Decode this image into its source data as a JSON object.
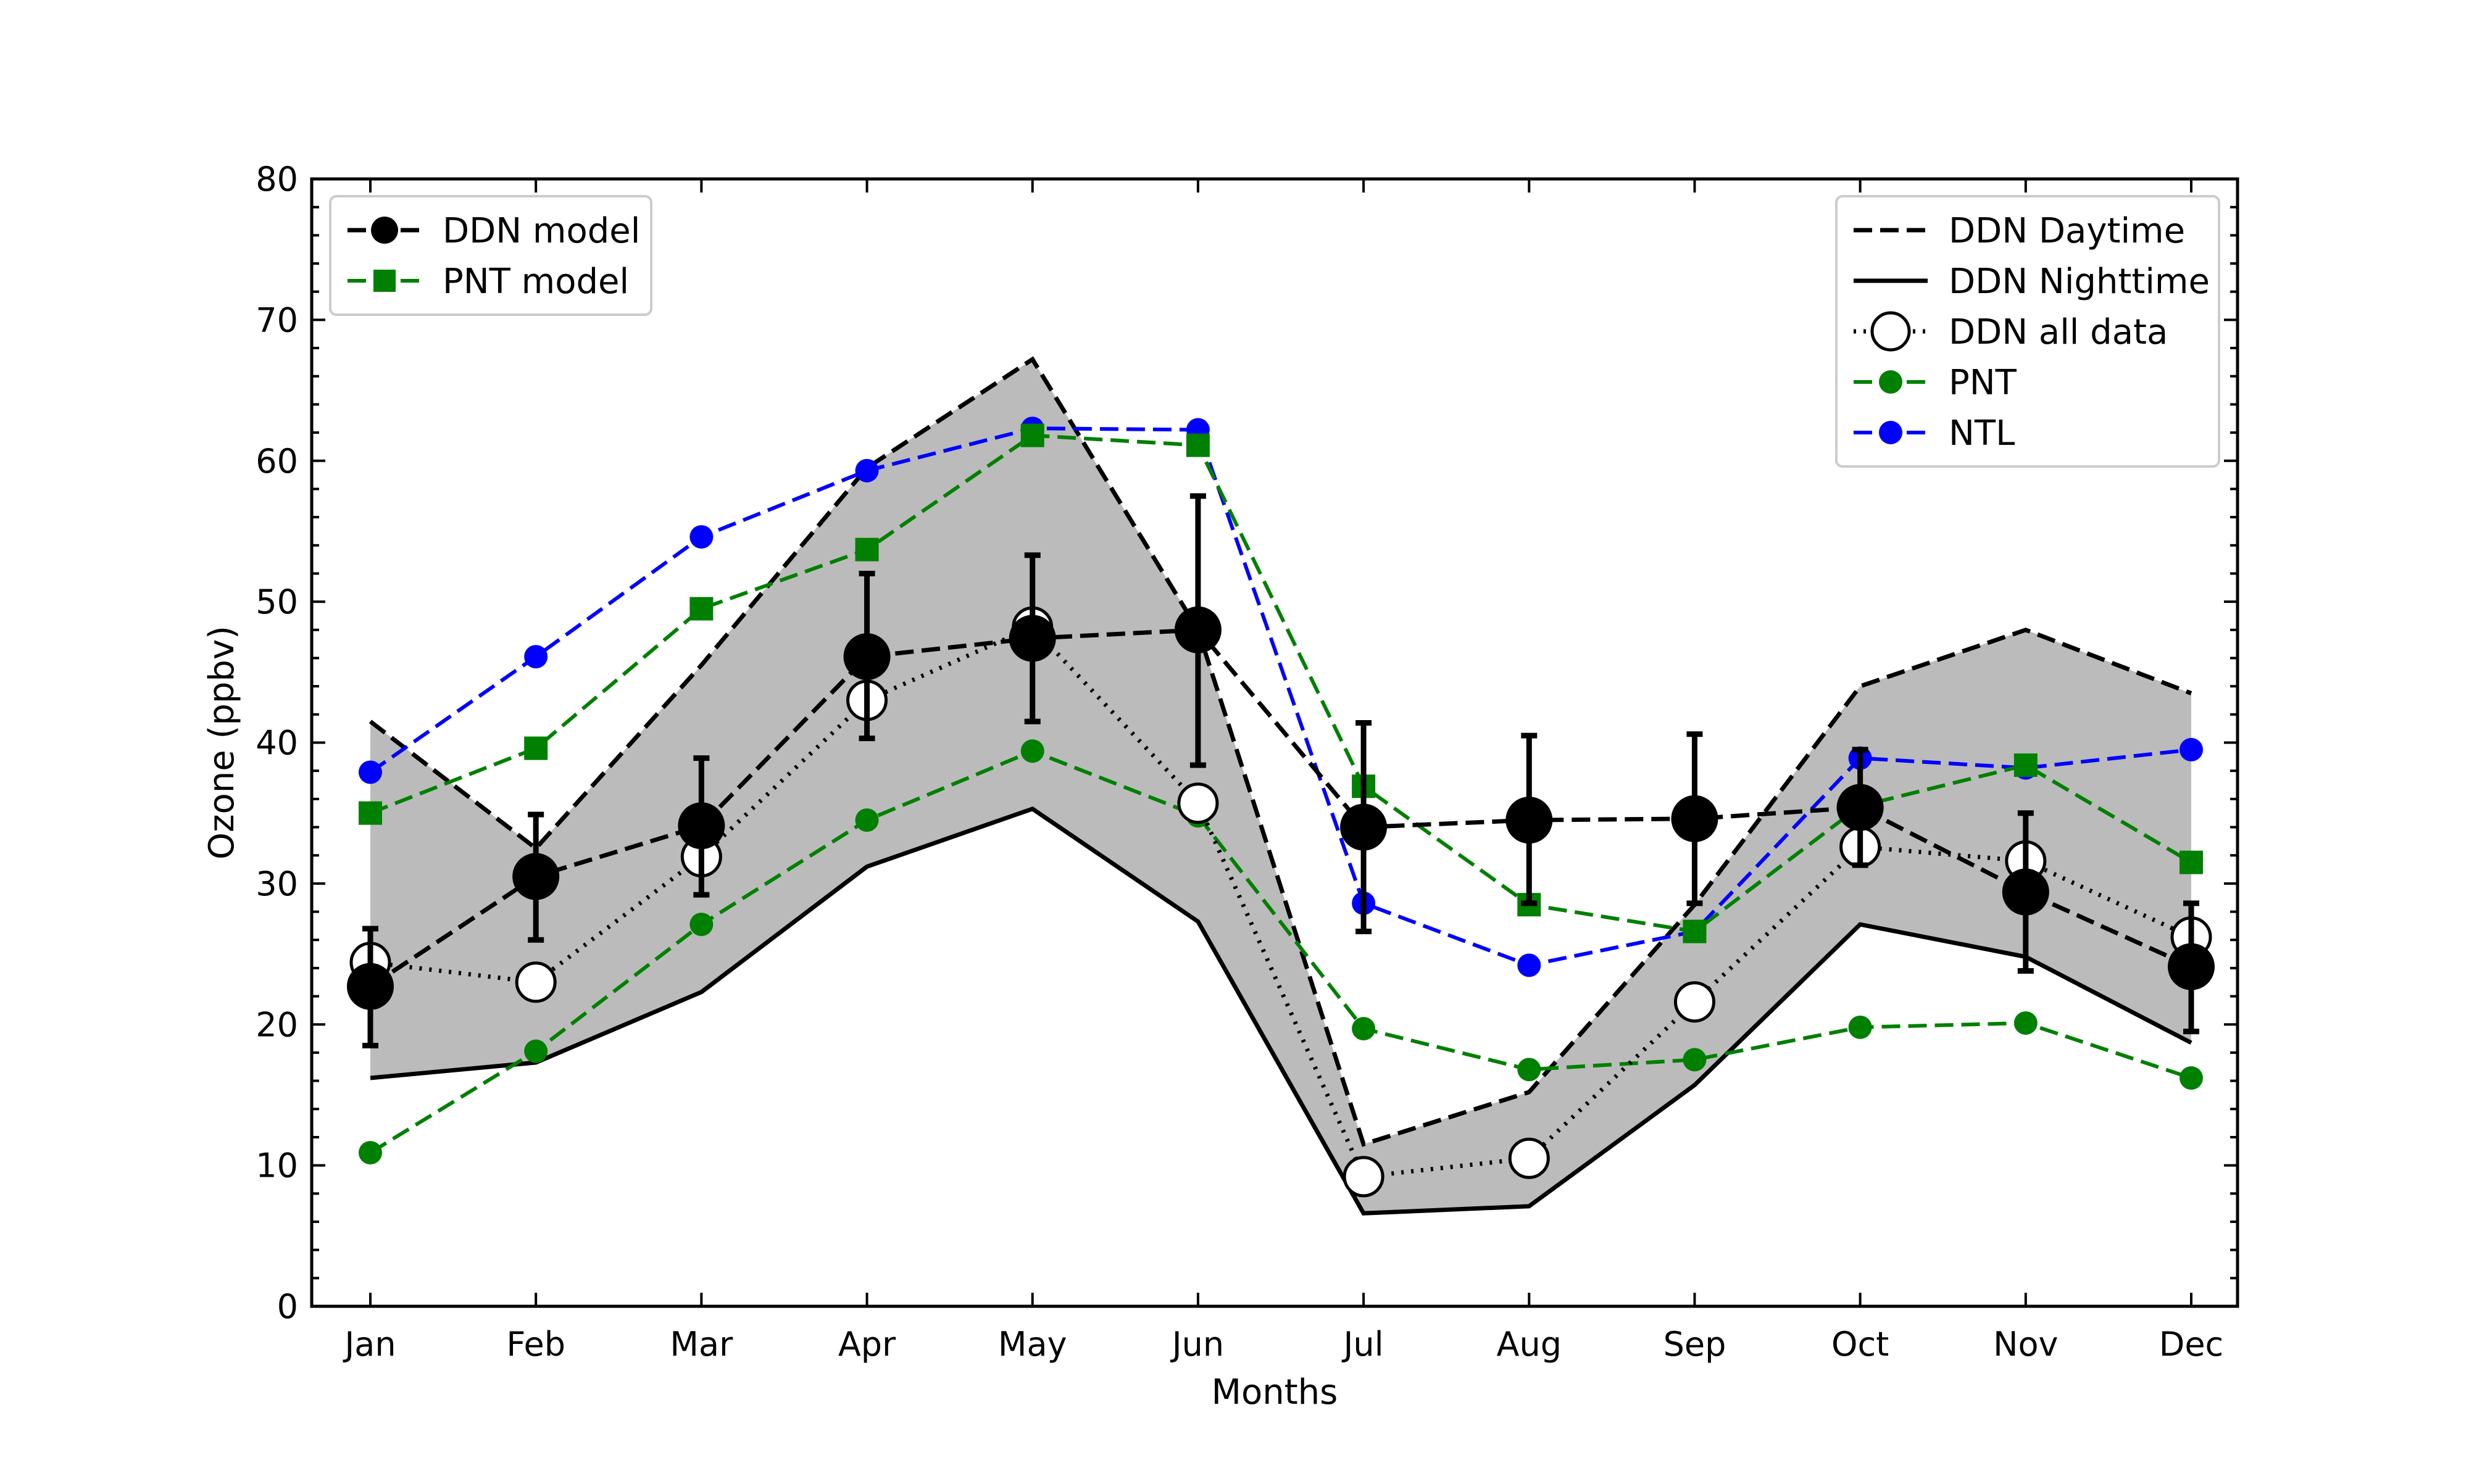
{
  "chart_data": {
    "type": "line",
    "title": "",
    "xlabel": "Months",
    "ylabel": "Ozone (ppbv)",
    "ylim": [
      0,
      80
    ],
    "yticks": [
      0,
      10,
      20,
      30,
      40,
      50,
      60,
      70,
      80
    ],
    "categories": [
      "Jan",
      "Feb",
      "Mar",
      "Apr",
      "May",
      "Jun",
      "Jul",
      "Aug",
      "Sep",
      "Oct",
      "Nov",
      "Dec"
    ],
    "grid": false,
    "colors": {
      "ddn": "#000000",
      "pnt": "#008000",
      "ntl": "#0000ff",
      "band": "#bbbbbb"
    },
    "band": {
      "daytime": [
        41.5,
        32.5,
        45.5,
        59.5,
        67.2,
        48.0,
        11.5,
        15.2,
        28.5,
        44.0,
        48.0,
        43.5
      ],
      "nighttime": [
        16.2,
        17.3,
        22.3,
        31.2,
        35.3,
        27.3,
        6.6,
        7.1,
        15.7,
        27.1,
        24.8,
        18.7
      ]
    },
    "series": [
      {
        "name": "DDN Daytime",
        "style": "dashed-line",
        "values": [
          41.5,
          32.5,
          45.5,
          59.5,
          67.2,
          48.0,
          11.5,
          15.2,
          28.5,
          44.0,
          48.0,
          43.5
        ]
      },
      {
        "name": "DDN Nighttime",
        "style": "solid-line",
        "values": [
          16.2,
          17.3,
          22.3,
          31.2,
          35.3,
          27.3,
          6.6,
          7.1,
          15.7,
          27.1,
          24.8,
          18.7
        ]
      },
      {
        "name": "DDN all data",
        "style": "dotted-open-circles",
        "values": [
          24.4,
          23.0,
          31.9,
          43.0,
          48.2,
          35.7,
          9.2,
          10.5,
          21.6,
          32.6,
          31.6,
          26.2
        ]
      },
      {
        "name": "DDN model",
        "style": "dashed-filled-circles",
        "values": [
          22.7,
          30.5,
          34.1,
          46.1,
          47.4,
          48.0,
          34.0,
          34.5,
          34.6,
          35.4,
          29.4,
          24.1
        ],
        "err_low": [
          18.5,
          26.0,
          29.2,
          40.3,
          41.5,
          38.4,
          26.6,
          28.6,
          28.6,
          31.3,
          23.8,
          19.5
        ],
        "err_high": [
          26.8,
          34.9,
          38.9,
          52.0,
          53.3,
          57.5,
          41.4,
          40.5,
          40.6,
          39.5,
          35.0,
          28.6
        ]
      },
      {
        "name": "PNT model",
        "style": "dashed-squares",
        "values": [
          35.0,
          39.6,
          49.5,
          53.7,
          61.8,
          61.1,
          36.9,
          28.5,
          26.6,
          35.5,
          38.4,
          31.5
        ]
      },
      {
        "name": "PNT",
        "style": "dashed-small-circles",
        "values": [
          10.9,
          18.1,
          27.1,
          34.5,
          39.4,
          34.8,
          19.7,
          16.8,
          17.5,
          19.8,
          20.1,
          16.2
        ]
      },
      {
        "name": "NTL",
        "style": "dashed-small-circles",
        "values": [
          37.9,
          46.1,
          54.6,
          59.3,
          62.3,
          62.2,
          28.6,
          24.2,
          26.6,
          38.9,
          38.2,
          39.5
        ]
      }
    ],
    "legends": {
      "left": {
        "position": "top-left",
        "entries": [
          "DDN model",
          "PNT model"
        ]
      },
      "right": {
        "position": "top-right",
        "entries": [
          "DDN Daytime",
          "DDN Nighttime",
          "DDN all data",
          "PNT",
          "NTL"
        ]
      }
    }
  }
}
